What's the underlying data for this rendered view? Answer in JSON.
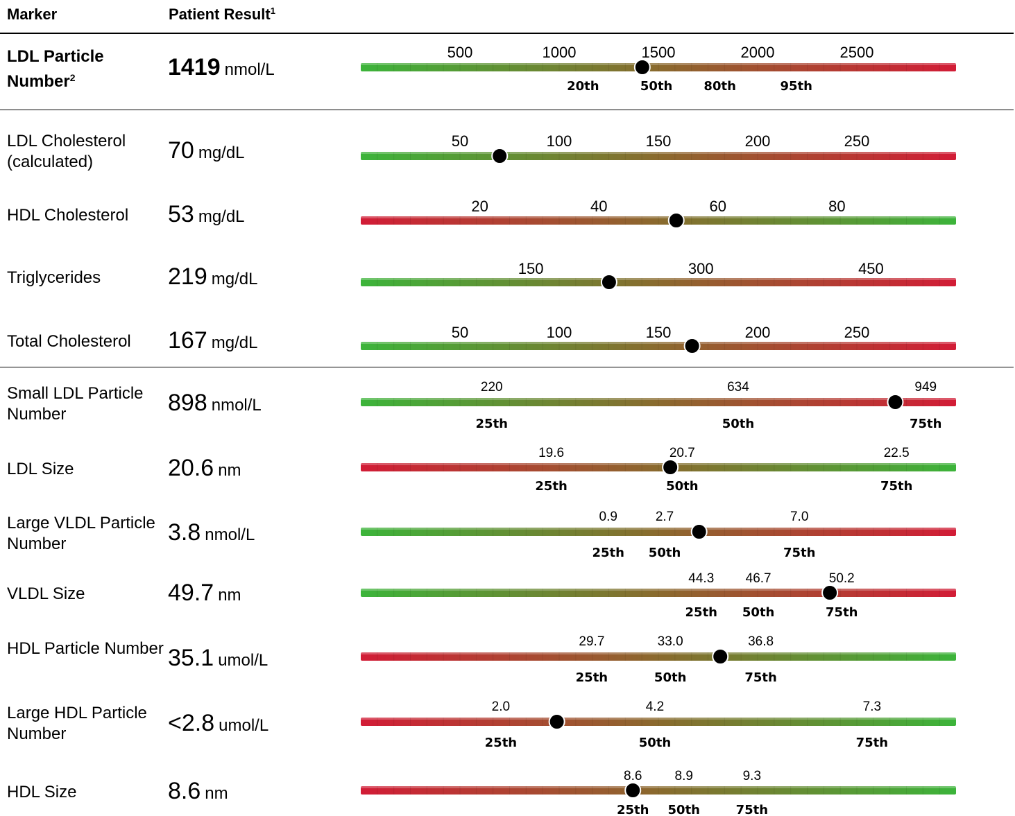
{
  "header": {
    "marker_label": "Marker",
    "result_label": "Patient Result",
    "result_sup": "1"
  },
  "colors": {
    "green": "#3cb43a",
    "red": "#d21c36",
    "dot": "#000000"
  },
  "chart_data": [
    {
      "type": "gauge",
      "marker": "LDL Particle Number",
      "marker_sup": "2",
      "bold": true,
      "value_text": "1419",
      "unit": "nmol/L",
      "value": 1419,
      "xlim": [
        0,
        3000
      ],
      "direction": "green-to-red",
      "ticks": [
        {
          "v": 500,
          "label": "500"
        },
        {
          "v": 1000,
          "label": "1000"
        },
        {
          "v": 1500,
          "label": "1500"
        },
        {
          "v": 2000,
          "label": "2000"
        },
        {
          "v": 2500,
          "label": "2500"
        }
      ],
      "percentiles": [
        {
          "v": 1120,
          "label": "20th"
        },
        {
          "v": 1490,
          "label": "50th"
        },
        {
          "v": 1810,
          "label": "80th"
        },
        {
          "v": 2195,
          "label": "95th"
        }
      ]
    },
    {
      "type": "gauge",
      "marker": "LDL Cholesterol (calculated)",
      "bold": false,
      "value_text": "70",
      "unit": "mg/dL",
      "value": 70,
      "xlim": [
        0,
        300
      ],
      "direction": "green-to-red",
      "ticks": [
        {
          "v": 50,
          "label": "50"
        },
        {
          "v": 100,
          "label": "100"
        },
        {
          "v": 150,
          "label": "150"
        },
        {
          "v": 200,
          "label": "200"
        },
        {
          "v": 250,
          "label": "250"
        }
      ],
      "percentiles": []
    },
    {
      "type": "gauge",
      "marker": "HDL Cholesterol",
      "bold": false,
      "value_text": "53",
      "unit": "mg/dL",
      "value": 53,
      "xlim": [
        0,
        100
      ],
      "direction": "red-to-green",
      "ticks": [
        {
          "v": 20,
          "label": "20"
        },
        {
          "v": 40,
          "label": "40"
        },
        {
          "v": 60,
          "label": "60"
        },
        {
          "v": 80,
          "label": "80"
        }
      ],
      "percentiles": []
    },
    {
      "type": "gauge",
      "marker": "Triglycerides",
      "bold": false,
      "value_text": "219",
      "unit": "mg/dL",
      "value": 219,
      "xlim": [
        0,
        525
      ],
      "direction": "green-to-red",
      "ticks": [
        {
          "v": 150,
          "label": "150"
        },
        {
          "v": 300,
          "label": "300"
        },
        {
          "v": 450,
          "label": "450"
        }
      ],
      "percentiles": []
    },
    {
      "type": "gauge",
      "marker": "Total Cholesterol",
      "bold": false,
      "value_text": "167",
      "unit": "mg/dL",
      "value": 167,
      "xlim": [
        0,
        300
      ],
      "direction": "green-to-red",
      "ticks": [
        {
          "v": 50,
          "label": "50"
        },
        {
          "v": 100,
          "label": "100"
        },
        {
          "v": 150,
          "label": "150"
        },
        {
          "v": 200,
          "label": "200"
        },
        {
          "v": 250,
          "label": "250"
        }
      ],
      "percentiles": []
    },
    {
      "type": "gauge",
      "marker": "Small LDL Particle Number",
      "bold": false,
      "value_text": "898",
      "unit": "nmol/L",
      "value": 898,
      "xlim": [
        0,
        1000
      ],
      "direction": "green-to-red",
      "ticks": [
        {
          "v": 220,
          "label": "220"
        },
        {
          "v": 634,
          "label": "634"
        },
        {
          "v": 949,
          "label": "949"
        }
      ],
      "percentiles": [
        {
          "v": 220,
          "label": "25th"
        },
        {
          "v": 634,
          "label": "50th"
        },
        {
          "v": 949,
          "label": "75th"
        }
      ]
    },
    {
      "type": "gauge",
      "marker": "LDL Size",
      "bold": false,
      "value_text": "20.6",
      "unit": "nm",
      "value": 20.6,
      "xlim": [
        18,
        23
      ],
      "direction": "red-to-green",
      "ticks": [
        {
          "v": 19.6,
          "label": "19.6"
        },
        {
          "v": 20.7,
          "label": "20.7"
        },
        {
          "v": 22.5,
          "label": "22.5"
        }
      ],
      "percentiles": [
        {
          "v": 19.6,
          "label": "25th"
        },
        {
          "v": 20.7,
          "label": "50th"
        },
        {
          "v": 22.5,
          "label": "75th"
        }
      ]
    },
    {
      "type": "gauge",
      "marker": "Large VLDL Particle Number",
      "bold": false,
      "value_text": "3.8",
      "unit": "nmol/L",
      "value": 3.8,
      "xlim": [
        -7,
        12
      ],
      "direction": "green-to-red",
      "ticks": [
        {
          "v": 0.9,
          "label": "0.9"
        },
        {
          "v": 2.7,
          "label": "2.7"
        },
        {
          "v": 7.0,
          "label": "7.0"
        }
      ],
      "percentiles": [
        {
          "v": 0.9,
          "label": "25th"
        },
        {
          "v": 2.7,
          "label": "50th"
        },
        {
          "v": 7.0,
          "label": "75th"
        }
      ]
    },
    {
      "type": "gauge",
      "marker": "VLDL Size",
      "bold": false,
      "value_text": "49.7",
      "unit": "nm",
      "value": 49.7,
      "xlim": [
        30,
        55
      ],
      "direction": "green-to-red",
      "ticks": [
        {
          "v": 44.3,
          "label": "44.3"
        },
        {
          "v": 46.7,
          "label": "46.7"
        },
        {
          "v": 50.2,
          "label": "50.2"
        }
      ],
      "percentiles": [
        {
          "v": 44.3,
          "label": "25th"
        },
        {
          "v": 46.7,
          "label": "50th"
        },
        {
          "v": 50.2,
          "label": "75th"
        }
      ]
    },
    {
      "type": "gauge",
      "marker": "HDL Particle Number",
      "bold": false,
      "value_text": "35.1",
      "unit": "umol/L",
      "value": 35.1,
      "xlim": [
        20,
        45
      ],
      "direction": "red-to-green",
      "ticks": [
        {
          "v": 29.7,
          "label": "29.7"
        },
        {
          "v": 33.0,
          "label": "33.0"
        },
        {
          "v": 36.8,
          "label": "36.8"
        }
      ],
      "percentiles": [
        {
          "v": 29.7,
          "label": "25th"
        },
        {
          "v": 33.0,
          "label": "50th"
        },
        {
          "v": 36.8,
          "label": "75th"
        }
      ]
    },
    {
      "type": "gauge",
      "marker": "Large HDL Particle Number",
      "bold": false,
      "value_text": "<2.8",
      "unit": "umol/L",
      "value": 2.8,
      "xlim": [
        0,
        8.5
      ],
      "direction": "red-to-green",
      "ticks": [
        {
          "v": 2.0,
          "label": "2.0"
        },
        {
          "v": 4.2,
          "label": "4.2"
        },
        {
          "v": 7.3,
          "label": "7.3"
        }
      ],
      "percentiles": [
        {
          "v": 2.0,
          "label": "25th"
        },
        {
          "v": 4.2,
          "label": "50th"
        },
        {
          "v": 7.3,
          "label": "75th"
        }
      ]
    },
    {
      "type": "gauge",
      "marker": "HDL Size",
      "bold": false,
      "value_text": "8.6",
      "unit": "nm",
      "value": 8.6,
      "xlim": [
        7,
        10.5
      ],
      "direction": "red-to-green",
      "ticks": [
        {
          "v": 8.6,
          "label": "8.6"
        },
        {
          "v": 8.9,
          "label": "8.9"
        },
        {
          "v": 9.3,
          "label": "9.3"
        }
      ],
      "percentiles": [
        {
          "v": 8.6,
          "label": "25th"
        },
        {
          "v": 8.9,
          "label": "50th"
        },
        {
          "v": 9.3,
          "label": "75th"
        }
      ]
    }
  ]
}
